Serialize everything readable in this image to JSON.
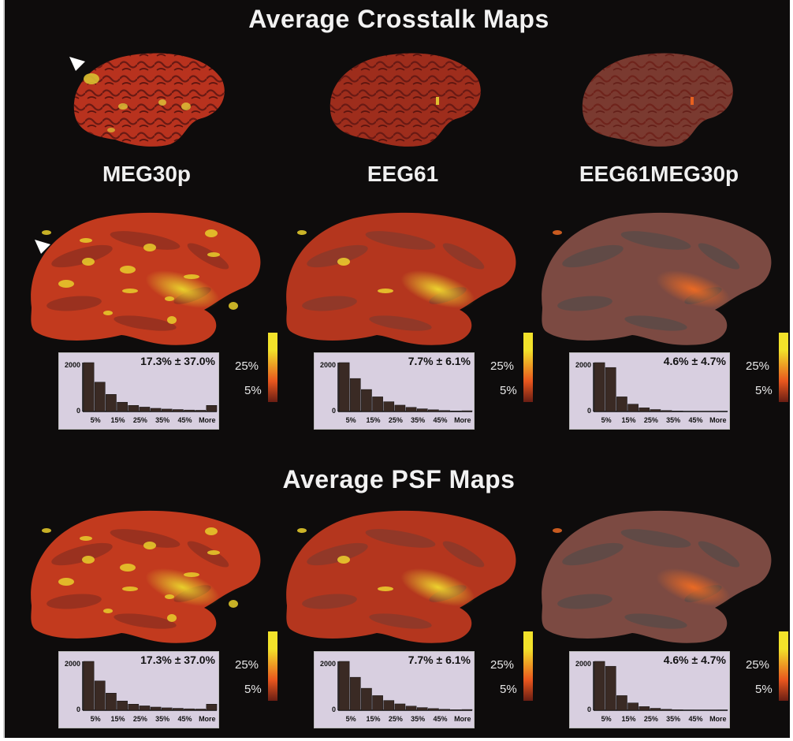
{
  "titles": {
    "crosstalk": "Average Crosstalk Maps",
    "psf": "Average PSF Maps"
  },
  "columns": [
    {
      "label": "MEG30p",
      "stat": "17.3% ± 37.0%",
      "style": "bright",
      "hist": [
        2000,
        1200,
        700,
        380,
        250,
        180,
        130,
        100,
        80,
        60,
        50,
        250
      ]
    },
    {
      "label": "EEG61",
      "stat": "7.7% ± 6.1%",
      "style": "mid",
      "hist": [
        2000,
        1350,
        900,
        600,
        400,
        260,
        170,
        110,
        70,
        40,
        20,
        30
      ]
    },
    {
      "label": "EEG61MEG30p",
      "stat": "4.6% ± 4.7%",
      "style": "dim",
      "hist": [
        2000,
        1800,
        600,
        300,
        150,
        80,
        40,
        20,
        10,
        8,
        5,
        10
      ]
    }
  ],
  "histogram_axis": {
    "ymax_label": "2000",
    "ymin_label": "0",
    "x_ticks": [
      "5%",
      "15%",
      "25%",
      "35%",
      "45%",
      "More"
    ]
  },
  "colorbar": {
    "high_label": "25%",
    "low_label": "5%",
    "colors": {
      "top": "#f2e22a",
      "mid": "#e8561e",
      "bottom": "#6a1e14"
    }
  }
}
